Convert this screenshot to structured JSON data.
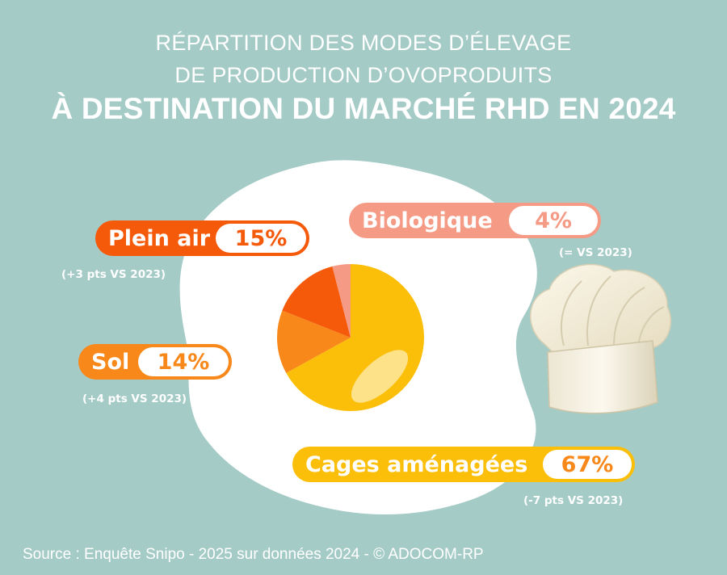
{
  "title": {
    "line1": "RÉPARTITION DES MODES D’ÉLEVAGE",
    "line2": "DE PRODUCTION D’OVOPRODUITS",
    "line3": "À DESTINATION DU MARCHÉ RHD EN 2024"
  },
  "source": "Source : Enquête Snipo - 2025 sur données 2024 - © ADOCOM-RP",
  "colors": {
    "background": "#a5cbc7",
    "plein_air": "#f55a0a",
    "sol": "#f8881a",
    "biologique": "#f59a85",
    "cages": "#fbbf0a"
  },
  "icons": [
    "fried-egg-icon",
    "chef-hat-icon"
  ],
  "chart_data": {
    "type": "pie",
    "slices": [
      {
        "label": "Cages aménagées",
        "value": 67,
        "display": "67%",
        "change": "(-7 pts VS 2023)",
        "color": "#fbbf0a"
      },
      {
        "label": "Sol",
        "value": 14,
        "display": "14%",
        "change": "(+4 pts VS 2023)",
        "color": "#f8881a"
      },
      {
        "label": "Plein air",
        "value": 15,
        "display": "15%",
        "change": "(+3 pts VS 2023)",
        "color": "#f55a0a"
      },
      {
        "label": "Biologique",
        "value": 4,
        "display": "4%",
        "change": "(= VS 2023)",
        "color": "#f59a85"
      }
    ]
  }
}
